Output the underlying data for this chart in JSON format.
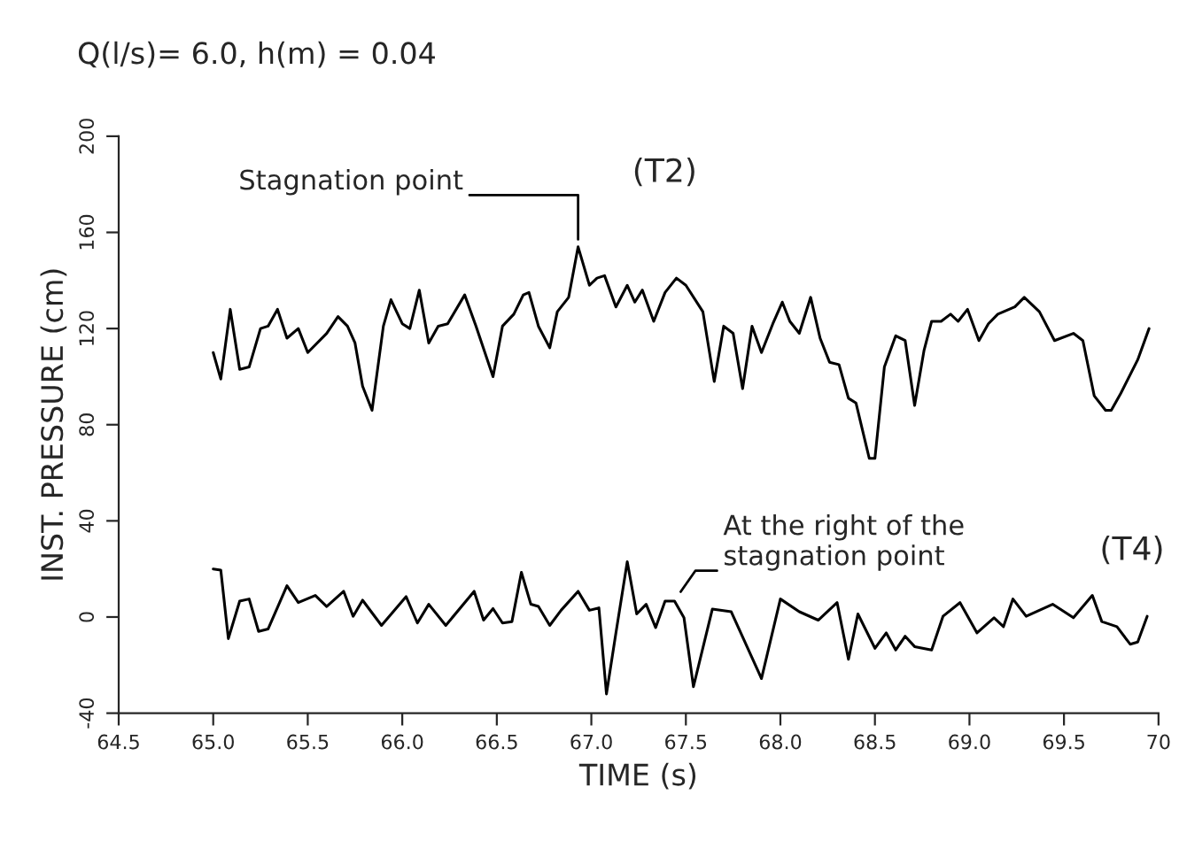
{
  "chart_data": {
    "type": "line",
    "title": "Q(l/s)= 6.0, h(m) = 0.04",
    "xlabel": "TIME (s)",
    "ylabel": "INST. PRESSURE (cm)",
    "xlim": [
      64.5,
      70
    ],
    "ylim": [
      -40,
      200
    ],
    "xticks": [
      {
        "value": 64.5,
        "label": "64.5"
      },
      {
        "value": 65,
        "label": "65.0"
      },
      {
        "value": 65.5,
        "label": "65.5"
      },
      {
        "value": 66,
        "label": "66.0"
      },
      {
        "value": 66.5,
        "label": "66.5"
      },
      {
        "value": 67,
        "label": "67.0"
      },
      {
        "value": 67.5,
        "label": "67.5"
      },
      {
        "value": 68,
        "label": "68.0"
      },
      {
        "value": 68.5,
        "label": "68.5"
      },
      {
        "value": 69,
        "label": "69.0"
      },
      {
        "value": 69.5,
        "label": "69.5"
      },
      70
    ],
    "yticks": [
      -40,
      0,
      40,
      80,
      120,
      160,
      200
    ],
    "grid": false,
    "marker": "none",
    "line_style": "solid",
    "series": [
      {
        "color": "#000000",
        "x": [
          65.0,
          65.04,
          65.09,
          65.14,
          65.19,
          65.25,
          65.29,
          65.34,
          65.39,
          65.45,
          65.5,
          65.6,
          65.66,
          65.71,
          65.75,
          65.79,
          65.84,
          65.9,
          65.94,
          66.0,
          66.04,
          66.09,
          66.14,
          66.19,
          66.24,
          66.33,
          66.39,
          66.48,
          66.53,
          66.59,
          66.64,
          66.67,
          66.72,
          66.78,
          66.82,
          66.88,
          66.93,
          66.99,
          67.03,
          67.07,
          67.13,
          67.19,
          67.23,
          67.27,
          67.33,
          67.39,
          67.45,
          67.5,
          67.59,
          67.65,
          67.7,
          67.75,
          67.8,
          67.85,
          67.9,
          67.96,
          68.01,
          68.05,
          68.1,
          68.16,
          68.21,
          68.26,
          68.31,
          68.36,
          68.4,
          68.47,
          68.5,
          68.55,
          68.61,
          68.66,
          68.71,
          68.76,
          68.8,
          68.85,
          68.9,
          68.94,
          68.99,
          69.05,
          69.1,
          69.15,
          69.24,
          69.29,
          69.37,
          69.45,
          69.55,
          69.6,
          69.66,
          69.72,
          69.75,
          69.8,
          69.89,
          69.95
        ],
        "values": [
          110,
          99,
          128,
          103,
          104,
          120,
          121,
          128,
          116,
          120,
          110,
          118,
          125,
          121,
          114,
          96,
          86,
          121,
          132,
          122,
          120,
          136,
          114,
          121,
          122,
          134,
          121,
          100,
          121,
          126,
          134,
          135,
          121,
          112,
          127,
          133,
          154,
          138,
          141,
          142,
          129,
          138,
          131,
          136,
          123,
          135,
          141,
          138,
          127,
          98,
          121,
          118,
          95,
          121,
          110,
          122,
          131,
          123,
          118,
          133,
          116,
          106,
          105,
          91,
          89,
          66,
          66,
          104,
          117,
          115,
          88,
          111,
          123,
          123,
          126,
          123,
          128,
          115,
          122,
          126,
          129,
          133,
          127,
          115,
          118,
          115,
          92,
          86,
          86,
          93,
          107,
          120
        ]
      },
      {
        "color": "#000000",
        "x": [
          65.0,
          65.04,
          65.08,
          65.14,
          65.19,
          65.24,
          65.29,
          65.39,
          65.45,
          65.54,
          65.6,
          65.69,
          65.74,
          65.79,
          65.89,
          66.02,
          66.08,
          66.14,
          66.23,
          66.38,
          66.43,
          66.48,
          66.53,
          66.58,
          66.63,
          66.68,
          66.72,
          66.78,
          66.84,
          66.93,
          66.99,
          67.04,
          67.08,
          67.13,
          67.19,
          67.24,
          67.29,
          67.34,
          67.39,
          67.44,
          67.49,
          67.54,
          67.64,
          67.74,
          67.9,
          68.0,
          68.1,
          68.2,
          68.3,
          68.36,
          68.41,
          68.5,
          68.56,
          68.61,
          68.66,
          68.71,
          68.8,
          68.86,
          68.95,
          69.04,
          69.13,
          69.18,
          69.23,
          69.3,
          69.44,
          69.55,
          69.65,
          69.7,
          69.78,
          69.85,
          69.89,
          69.94
        ],
        "values": [
          20,
          19.5,
          -9,
          6.6,
          7.5,
          -6,
          -5,
          13,
          6,
          9,
          4.4,
          10.7,
          0.3,
          7,
          -3.5,
          8.5,
          -2.5,
          5.3,
          -3.5,
          10.7,
          -1.3,
          3.5,
          -2.5,
          -1.9,
          18.6,
          5.3,
          4.4,
          -3.5,
          2.8,
          10.7,
          2.8,
          3.8,
          -32,
          -6.6,
          23,
          1.3,
          5.3,
          -4.4,
          6.6,
          6.6,
          -0.3,
          -29,
          3.3,
          2.2,
          -25.6,
          7.5,
          2.2,
          -1.3,
          6,
          -17.6,
          1.3,
          -13,
          -6.6,
          -13.7,
          -8,
          -12.3,
          -13.7,
          0.3,
          6,
          -6.6,
          -0.3,
          -4,
          7.5,
          0.3,
          5.3,
          -0.3,
          9,
          -1.9,
          -4,
          -11.3,
          -10.4,
          0.3
        ]
      }
    ],
    "annotations": [
      {
        "text": "Stagnation point",
        "x": 66.93,
        "y": 154
      },
      "(T2)",
      {
        "text": "At the right of the\nstagnation point",
        "x": 67.45,
        "y": 8
      },
      "(T4)"
    ]
  }
}
